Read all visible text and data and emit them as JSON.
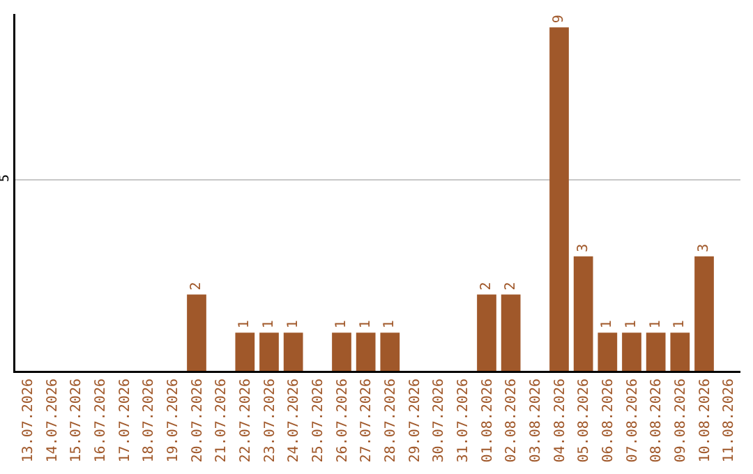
{
  "chart_data": {
    "type": "bar",
    "categories": [
      "13.07.2026",
      "14.07.2026",
      "15.07.2026",
      "16.07.2026",
      "17.07.2026",
      "18.07.2026",
      "19.07.2026",
      "20.07.2026",
      "21.07.2026",
      "22.07.2026",
      "23.07.2026",
      "24.07.2026",
      "25.07.2026",
      "26.07.2026",
      "27.07.2026",
      "28.07.2026",
      "29.07.2026",
      "30.07.2026",
      "31.07.2026",
      "01.08.2026",
      "02.08.2026",
      "03.08.2026",
      "04.08.2026",
      "05.08.2026",
      "06.08.2026",
      "07.08.2026",
      "08.08.2026",
      "09.08.2026",
      "10.08.2026",
      "11.08.2026"
    ],
    "values": [
      0,
      0,
      0,
      0,
      0,
      0,
      0,
      2,
      0,
      1,
      1,
      1,
      0,
      1,
      1,
      1,
      0,
      0,
      0,
      2,
      2,
      0,
      9,
      3,
      1,
      1,
      1,
      1,
      3,
      0
    ],
    "value_labels": [
      null,
      null,
      null,
      null,
      null,
      null,
      null,
      "2",
      null,
      "1",
      "1",
      "1",
      null,
      "1",
      "1",
      "1",
      null,
      null,
      null,
      "2",
      "2",
      null,
      "9",
      "3",
      "1",
      "1",
      "1",
      "1",
      "3",
      null
    ],
    "color": "#a0582a",
    "ylim": [
      0,
      9.35
    ],
    "yticks": [
      5
    ],
    "grid": "y"
  }
}
